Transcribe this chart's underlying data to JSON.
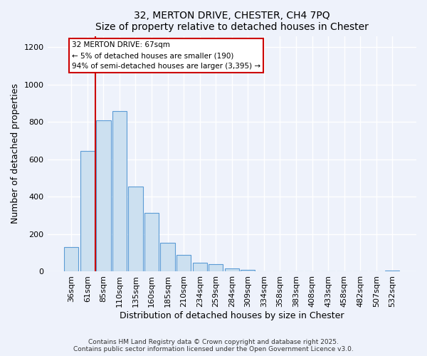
{
  "title": "32, MERTON DRIVE, CHESTER, CH4 7PQ",
  "subtitle": "Size of property relative to detached houses in Chester",
  "xlabel": "Distribution of detached houses by size in Chester",
  "ylabel": "Number of detached properties",
  "bar_labels": [
    "36sqm",
    "61sqm",
    "85sqm",
    "110sqm",
    "135sqm",
    "160sqm",
    "185sqm",
    "210sqm",
    "234sqm",
    "259sqm",
    "284sqm",
    "309sqm",
    "334sqm",
    "358sqm",
    "383sqm",
    "408sqm",
    "433sqm",
    "458sqm",
    "482sqm",
    "507sqm",
    "532sqm"
  ],
  "bar_values": [
    130,
    645,
    810,
    860,
    455,
    315,
    155,
    90,
    48,
    38,
    18,
    10,
    0,
    0,
    0,
    0,
    0,
    0,
    0,
    0,
    5
  ],
  "bar_color": "#cce0f0",
  "bar_edge_color": "#5b9bd5",
  "ylim": [
    0,
    1260
  ],
  "yticks": [
    0,
    200,
    400,
    600,
    800,
    1000,
    1200
  ],
  "vline_color": "#cc0000",
  "annotation_text": "32 MERTON DRIVE: 67sqm\n← 5% of detached houses are smaller (190)\n94% of semi-detached houses are larger (3,395) →",
  "annotation_box_color": "#ffffff",
  "annotation_box_edge": "#cc0000",
  "bg_color": "#eef2fb",
  "grid_color": "#ffffff",
  "footer1": "Contains HM Land Registry data © Crown copyright and database right 2025.",
  "footer2": "Contains public sector information licensed under the Open Government Licence v3.0."
}
